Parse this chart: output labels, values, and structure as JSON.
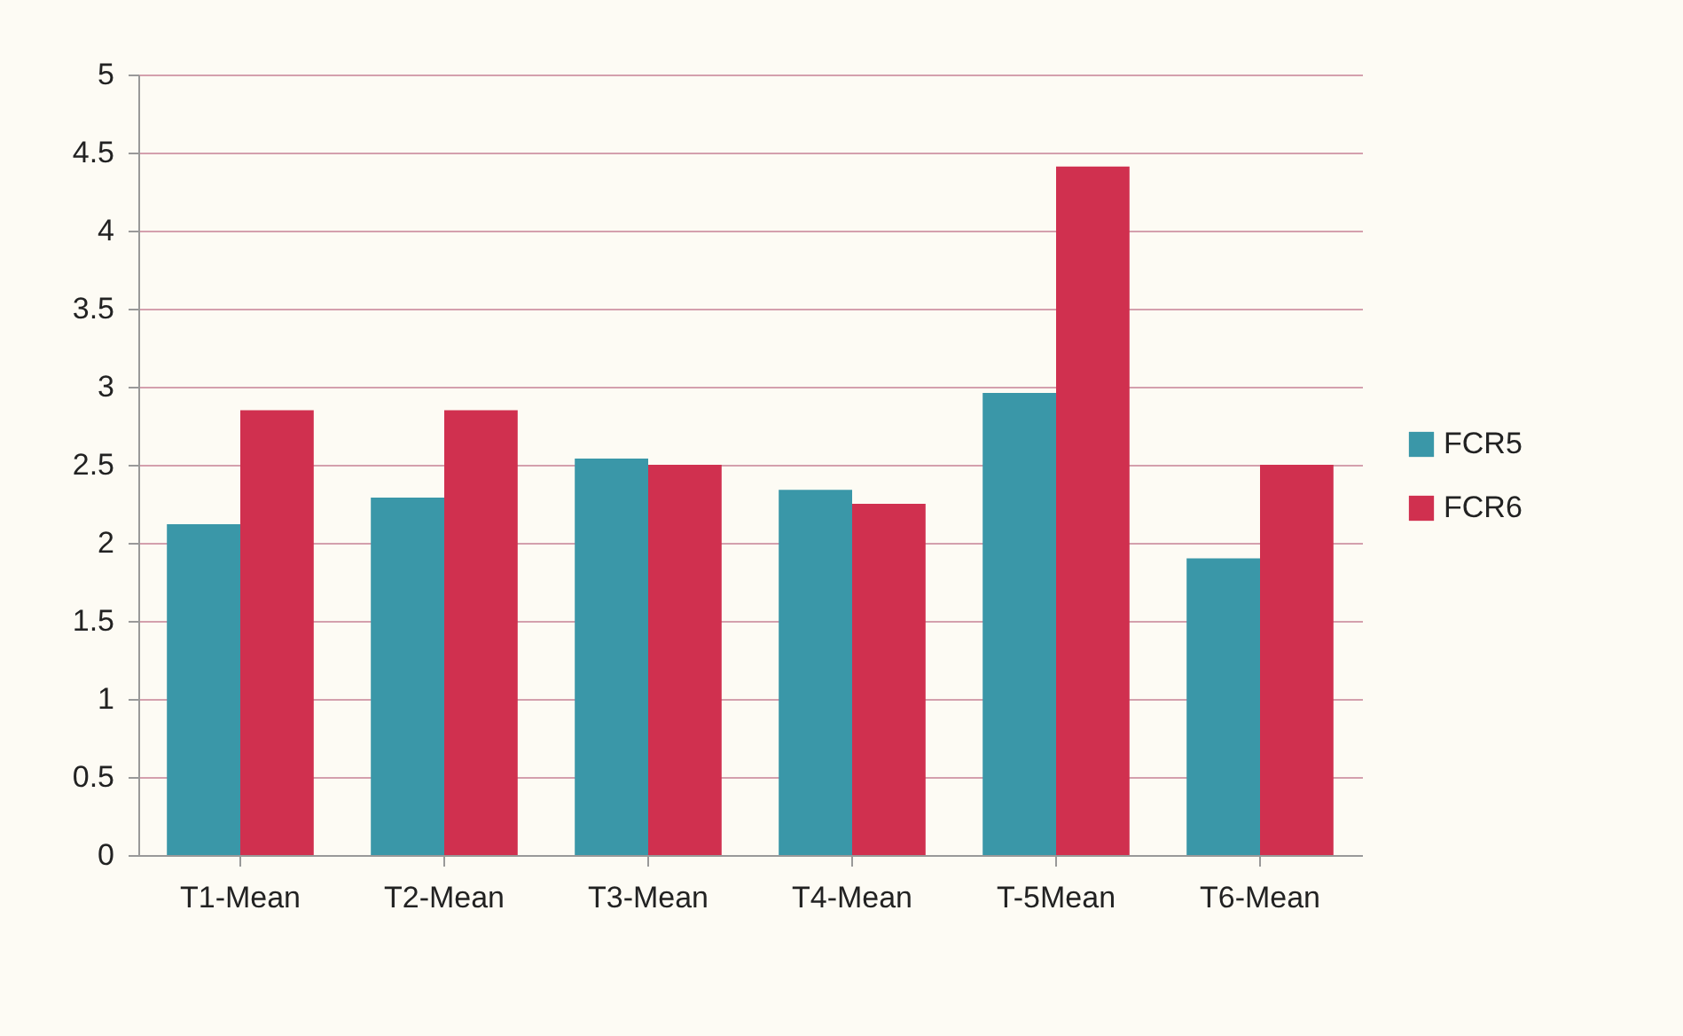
{
  "chart_data": {
    "type": "bar",
    "categories": [
      "T1-Mean",
      "T2-Mean",
      "T3-Mean",
      "T4-Mean",
      "T-5Mean",
      "T6-Mean"
    ],
    "series": [
      {
        "name": "FCR5",
        "color": "#3a97a8",
        "values": [
          2.12,
          2.29,
          2.54,
          2.34,
          2.96,
          1.9
        ]
      },
      {
        "name": "FCR6",
        "color": "#d0304f",
        "values": [
          2.85,
          2.85,
          2.5,
          2.25,
          4.41,
          2.5
        ]
      }
    ],
    "ylim": [
      0,
      5
    ],
    "yticks": [
      0,
      0.5,
      1,
      1.5,
      2,
      2.5,
      3,
      3.5,
      4,
      4.5,
      5
    ],
    "grid": "y",
    "legend": "right"
  }
}
